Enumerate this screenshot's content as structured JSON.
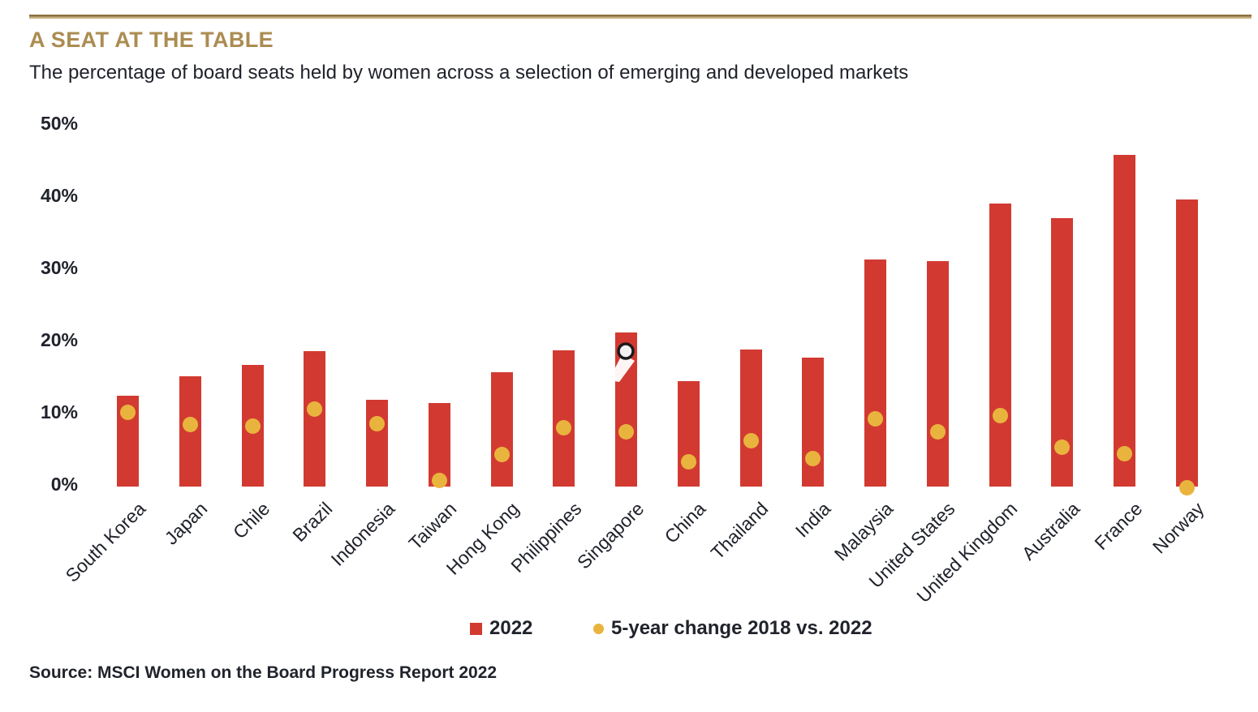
{
  "header": {
    "title": "A SEAT AT THE TABLE",
    "subtitle": "The percentage of board seats held by women across a selection of emerging and developed markets"
  },
  "colors": {
    "bar_red": "#d23a31",
    "dot_gold": "#e9b43e",
    "title_gold": "#ab8c52",
    "text_dark": "#20232b",
    "rule_dark": "#8a7142",
    "rule_light": "#c7b181"
  },
  "legend": {
    "items": [
      {
        "marker": "red-square",
        "label": "2022"
      },
      {
        "marker": "gold-dot",
        "label": "5-year change 2018 vs. 2022"
      }
    ]
  },
  "source": {
    "text": "Source: MSCI Women on the Board Progress Report 2022"
  },
  "chart_data": {
    "type": "bar",
    "title": "A SEAT AT THE TABLE",
    "subtitle": "The percentage of board seats held by women across a selection of emerging and developed markets",
    "categories": [
      "South Korea",
      "Japan",
      "Chile",
      "Brazil",
      "Indonesia",
      "Taiwan",
      "Hong Kong",
      "Philippines",
      "Singapore",
      "China",
      "Thailand",
      "India",
      "Malaysia",
      "United States",
      "United Kingdom",
      "Australia",
      "France",
      "Norway"
    ],
    "series": [
      {
        "name": "2022",
        "type": "bar",
        "color": "#d23a31",
        "values": [
          12.6,
          15.3,
          16.9,
          18.8,
          12.0,
          11.6,
          15.8,
          18.9,
          21.3,
          14.6,
          19.0,
          17.9,
          31.5,
          31.2,
          39.2,
          37.2,
          46.0,
          39.8
        ]
      },
      {
        "name": "5-year change 2018 vs. 2022",
        "type": "point",
        "color": "#e9b43e",
        "values": [
          10.3,
          8.6,
          8.4,
          10.7,
          8.7,
          0.8,
          4.4,
          8.1,
          7.6,
          3.4,
          6.3,
          3.9,
          9.4,
          7.6,
          9.8,
          5.5,
          4.6,
          -0.2
        ]
      }
    ],
    "xlabel": "",
    "ylabel": "",
    "ylim": [
      0,
      50
    ],
    "yticks": [
      "0%",
      "10%",
      "20%",
      "30%",
      "40%",
      "50%"
    ],
    "grid": false,
    "legend_position": "bottom"
  }
}
